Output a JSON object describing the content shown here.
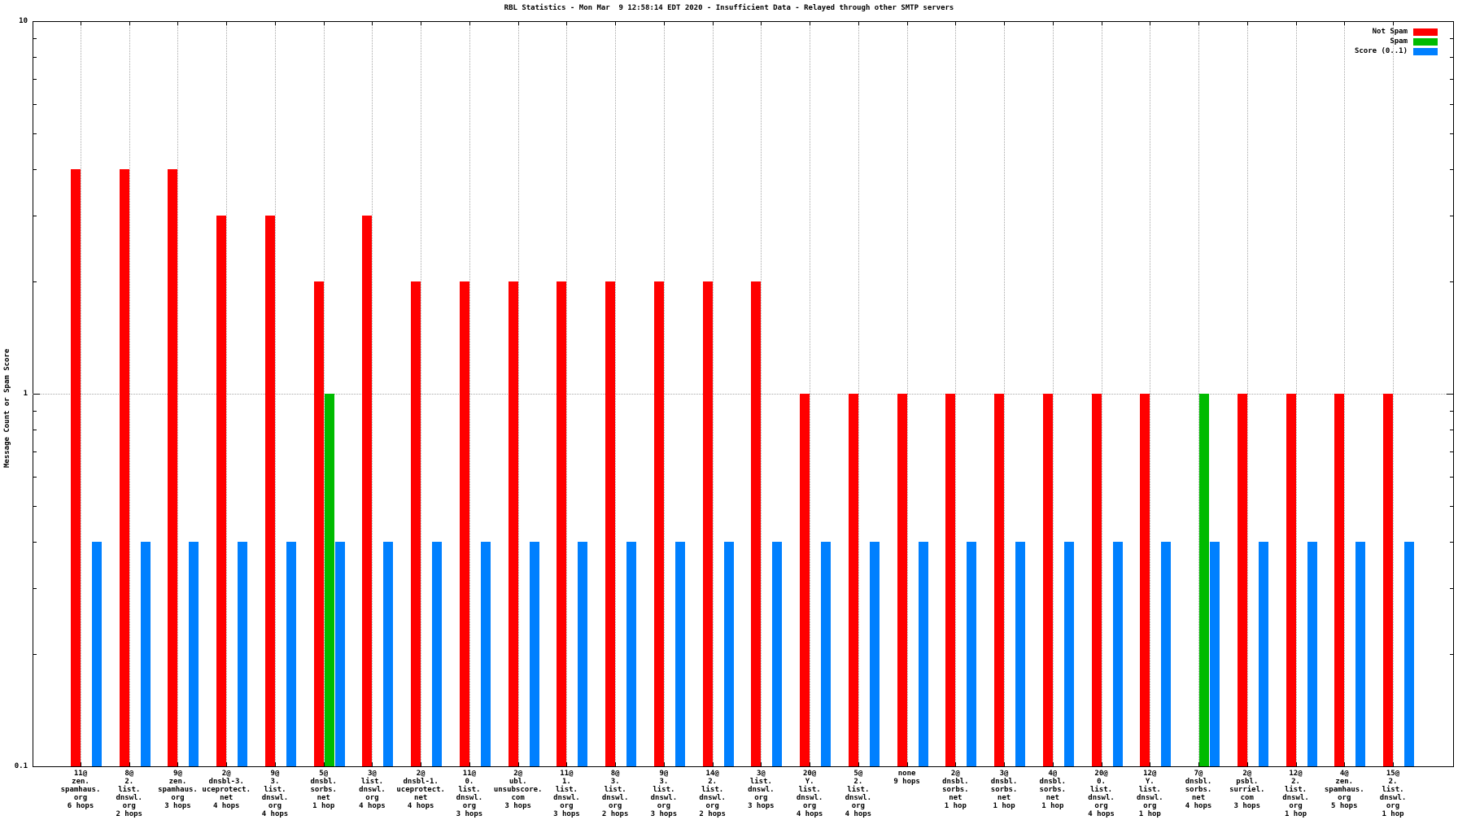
{
  "title": "RBL Statistics - Mon Mar  9 12:58:14 EDT 2020 - Insufficient Data - Relayed through other SMTP servers",
  "chart_data": {
    "type": "bar",
    "title": "RBL Statistics - Mon Mar  9 12:58:14 EDT 2020 - Insufficient Data - Relayed through other SMTP servers",
    "ylabel": "Message Count or Spam Score",
    "yscale": "log",
    "ylim": [
      0.1,
      10
    ],
    "grid": true,
    "legend_position": "top-right",
    "ymajor_ticks": [
      {
        "value": 10,
        "label": "10"
      },
      {
        "value": 1,
        "label": "1"
      },
      {
        "value": 0.1,
        "label": "0.1"
      }
    ],
    "yminor_tick_values": [
      0.2,
      0.3,
      0.4,
      0.5,
      0.6,
      0.7,
      0.8,
      0.9,
      2,
      3,
      4,
      5,
      6,
      7,
      8,
      9
    ],
    "legend": [
      {
        "label": "Not Spam",
        "color": "#ff0000"
      },
      {
        "label": "Spam",
        "color": "#00bb00"
      },
      {
        "label": "Score (0..1)",
        "color": "#0080ff"
      }
    ],
    "categories": [
      [
        "11@",
        "zen.",
        "spamhaus.",
        "org",
        "6 hops"
      ],
      [
        "8@",
        "2.",
        "list.",
        "dnswl.",
        "org",
        "2 hops"
      ],
      [
        "9@",
        "zen.",
        "spamhaus.",
        "org",
        "3 hops"
      ],
      [
        "2@",
        "dnsbl-3.",
        "uceprotect.",
        "net",
        "4 hops"
      ],
      [
        "9@",
        "3.",
        "list.",
        "dnswl.",
        "org",
        "4 hops"
      ],
      [
        "5@",
        "dnsbl.",
        "sorbs.",
        "net",
        "1 hop"
      ],
      [
        "3@",
        "list.",
        "dnswl.",
        "org",
        "4 hops"
      ],
      [
        "2@",
        "dnsbl-1.",
        "uceprotect.",
        "net",
        "4 hops"
      ],
      [
        "11@",
        "0.",
        "list.",
        "dnswl.",
        "org",
        "3 hops"
      ],
      [
        "2@",
        "ubl.",
        "unsubscore.",
        "com",
        "3 hops"
      ],
      [
        "11@",
        "1.",
        "list.",
        "dnswl.",
        "org",
        "3 hops"
      ],
      [
        "8@",
        "3.",
        "list.",
        "dnswl.",
        "org",
        "2 hops"
      ],
      [
        "9@",
        "3.",
        "list.",
        "dnswl.",
        "org",
        "3 hops"
      ],
      [
        "14@",
        "2.",
        "list.",
        "dnswl.",
        "org",
        "2 hops"
      ],
      [
        "3@",
        "list.",
        "dnswl.",
        "org",
        "3 hops"
      ],
      [
        "20@",
        "Y.",
        "list.",
        "dnswl.",
        "org",
        "4 hops"
      ],
      [
        "5@",
        "2.",
        "list.",
        "dnswl.",
        "org",
        "4 hops"
      ],
      [
        "none",
        "9 hops"
      ],
      [
        "2@",
        "dnsbl.",
        "sorbs.",
        "net",
        "1 hop"
      ],
      [
        "3@",
        "dnsbl.",
        "sorbs.",
        "net",
        "1 hop"
      ],
      [
        "4@",
        "dnsbl.",
        "sorbs.",
        "net",
        "1 hop"
      ],
      [
        "20@",
        "0.",
        "list.",
        "dnswl.",
        "org",
        "4 hops"
      ],
      [
        "12@",
        "Y.",
        "list.",
        "dnswl.",
        "org",
        "1 hop"
      ],
      [
        "7@",
        "dnsbl.",
        "sorbs.",
        "net",
        "4 hops"
      ],
      [
        "2@",
        "psbl.",
        "surriel.",
        "com",
        "3 hops"
      ],
      [
        "12@",
        "2.",
        "list.",
        "dnswl.",
        "org",
        "1 hop"
      ],
      [
        "4@",
        "zen.",
        "spamhaus.",
        "org",
        "5 hops"
      ],
      [
        "15@",
        "2.",
        "list.",
        "dnswl.",
        "org",
        "1 hop"
      ]
    ],
    "series": [
      {
        "name": "Not Spam",
        "color": "#ff0000",
        "values": [
          4,
          4,
          4,
          3,
          3,
          2,
          3,
          2,
          2,
          2,
          2,
          2,
          2,
          2,
          2,
          1,
          1,
          1,
          1,
          1,
          1,
          1,
          1,
          null,
          1,
          1,
          1,
          1
        ]
      },
      {
        "name": "Spam",
        "color": "#00bb00",
        "values": [
          null,
          null,
          null,
          null,
          null,
          1,
          null,
          null,
          null,
          null,
          null,
          null,
          null,
          null,
          null,
          null,
          null,
          null,
          null,
          null,
          null,
          null,
          null,
          1,
          null,
          null,
          null,
          null
        ]
      },
      {
        "name": "Score (0..1)",
        "color": "#0080ff",
        "values": [
          0.4,
          0.4,
          0.4,
          0.4,
          0.4,
          0.4,
          0.4,
          0.4,
          0.4,
          0.4,
          0.4,
          0.4,
          0.4,
          0.4,
          0.4,
          0.4,
          0.4,
          0.4,
          0.4,
          0.4,
          0.4,
          0.4,
          0.4,
          0.4,
          0.4,
          0.4,
          0.4,
          0.4
        ]
      }
    ]
  }
}
